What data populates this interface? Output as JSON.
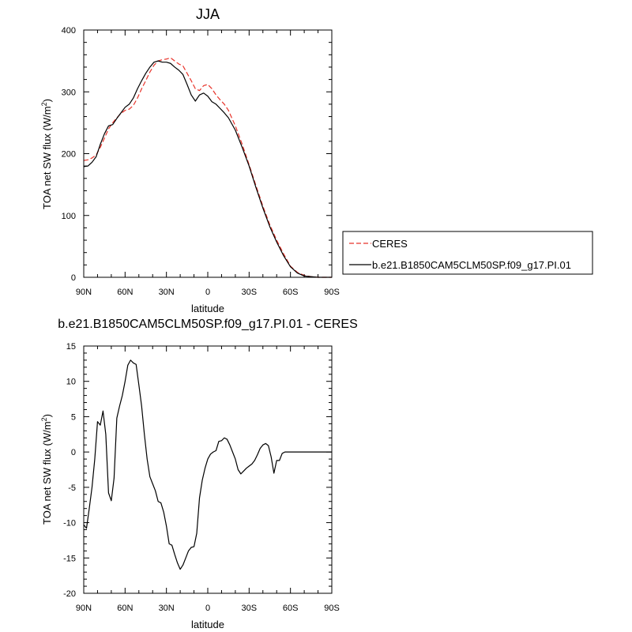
{
  "chart_data": [
    {
      "type": "line",
      "title": "JJA",
      "xlabel": "latitude",
      "ylabel_main": "TOA net SW flux (W/m",
      "ylabel_sup": "2",
      "ylabel_close": ")",
      "xlim": [
        90,
        -90
      ],
      "ylim": [
        0,
        400
      ],
      "xticks": [
        {
          "v": 90,
          "label": "90N"
        },
        {
          "v": 60,
          "label": "60N"
        },
        {
          "v": 30,
          "label": "30N"
        },
        {
          "v": 0,
          "label": "0"
        },
        {
          "v": -30,
          "label": "30S"
        },
        {
          "v": -60,
          "label": "60S"
        },
        {
          "v": -90,
          "label": "90S"
        }
      ],
      "yticks": [
        {
          "v": 0,
          "label": "0"
        },
        {
          "v": 100,
          "label": "100"
        },
        {
          "v": 200,
          "label": "200"
        },
        {
          "v": 300,
          "label": "300"
        },
        {
          "v": 400,
          "label": "400"
        }
      ],
      "legend": {
        "placement": "right"
      },
      "series": [
        {
          "name": "CERES",
          "color": "#e8332a",
          "dashed": true,
          "x": [
            90,
            87,
            84,
            81,
            78,
            75,
            72,
            69,
            66,
            63,
            60,
            57,
            54,
            51,
            48,
            45,
            42,
            39,
            36,
            33,
            30,
            27,
            24,
            21,
            18,
            15,
            12,
            9,
            6,
            3,
            0,
            -3,
            -6,
            -9,
            -12,
            -15,
            -20,
            -25,
            -30,
            -35,
            -40,
            -45,
            -50,
            -55,
            -60,
            -65,
            -70,
            -75,
            -80,
            -85,
            -90
          ],
          "y": [
            189,
            190,
            193,
            198,
            210,
            225,
            240,
            250,
            258,
            265,
            270,
            272,
            278,
            290,
            305,
            318,
            332,
            343,
            350,
            352,
            353,
            355,
            350,
            345,
            342,
            330,
            318,
            305,
            302,
            310,
            312,
            305,
            295,
            287,
            280,
            270,
            245,
            215,
            182,
            148,
            115,
            85,
            60,
            38,
            18,
            8,
            3,
            1,
            0,
            0,
            0
          ]
        },
        {
          "name": "b.e21.B1850CAM5CLM50SP.f09_g17.PI.01",
          "color": "#000000",
          "dashed": false,
          "x": [
            90,
            87,
            84,
            81,
            78,
            75,
            72,
            69,
            66,
            63,
            60,
            57,
            54,
            51,
            48,
            45,
            42,
            39,
            36,
            33,
            30,
            27,
            24,
            21,
            18,
            15,
            12,
            9,
            6,
            3,
            0,
            -3,
            -6,
            -9,
            -12,
            -15,
            -20,
            -25,
            -30,
            -35,
            -40,
            -45,
            -50,
            -55,
            -60,
            -65,
            -70,
            -75,
            -80,
            -85,
            -90
          ],
          "y": [
            179,
            180,
            186,
            195,
            215,
            232,
            245,
            247,
            257,
            266,
            275,
            280,
            290,
            305,
            318,
            330,
            340,
            348,
            350,
            348,
            348,
            346,
            340,
            335,
            328,
            312,
            295,
            285,
            295,
            298,
            293,
            284,
            280,
            273,
            266,
            258,
            238,
            210,
            180,
            145,
            112,
            82,
            57,
            35,
            17,
            7,
            2,
            1,
            0,
            0,
            0
          ]
        }
      ]
    },
    {
      "type": "line",
      "title": "b.e21.B1850CAM5CLM50SP.f09_g17.PI.01 - CERES",
      "xlabel": "latitude",
      "ylabel_main": "TOA net SW flux (W/m",
      "ylabel_sup": "2",
      "ylabel_close": ")",
      "xlim": [
        90,
        -90
      ],
      "ylim": [
        -20,
        15
      ],
      "xticks": [
        {
          "v": 90,
          "label": "90N"
        },
        {
          "v": 60,
          "label": "60N"
        },
        {
          "v": 30,
          "label": "30N"
        },
        {
          "v": 0,
          "label": "0"
        },
        {
          "v": -30,
          "label": "30S"
        },
        {
          "v": -60,
          "label": "60S"
        },
        {
          "v": -90,
          "label": "90S"
        }
      ],
      "yticks": [
        {
          "v": -20,
          "label": "-20"
        },
        {
          "v": -15,
          "label": "-15"
        },
        {
          "v": -10,
          "label": "-10"
        },
        {
          "v": -5,
          "label": "-5"
        },
        {
          "v": 0,
          "label": "0"
        },
        {
          "v": 5,
          "label": "5"
        },
        {
          "v": 10,
          "label": "10"
        },
        {
          "v": 15,
          "label": "15"
        }
      ],
      "series": [
        {
          "color": "#000000",
          "x": [
            90,
            88,
            86,
            84,
            82,
            80,
            78,
            76,
            74,
            72,
            70,
            68,
            66,
            64,
            62,
            60,
            58,
            56,
            54,
            52,
            50,
            48,
            46,
            44,
            42,
            40,
            38,
            36,
            34,
            32,
            30,
            28,
            26,
            24,
            22,
            20,
            18,
            16,
            14,
            12,
            10,
            8,
            6,
            4,
            2,
            0,
            -2,
            -4,
            -6,
            -8,
            -10,
            -12,
            -14,
            -16,
            -18,
            -20,
            -22,
            -24,
            -26,
            -28,
            -30,
            -32,
            -34,
            -36,
            -38,
            -40,
            -42,
            -44,
            -46,
            -48,
            -50,
            -52,
            -54,
            -56,
            -58,
            -60,
            -62,
            -64,
            -66,
            -68,
            -70,
            -72,
            -74,
            -76,
            -78,
            -80,
            -82,
            -84,
            -86,
            -88,
            -90
          ],
          "y": [
            -10.3,
            -10.8,
            -8,
            -5,
            -1,
            4.3,
            3.8,
            5.8,
            2.5,
            -5.8,
            -6.9,
            -3.7,
            4.8,
            6.5,
            8,
            10,
            12.3,
            13,
            12.6,
            12.4,
            9.5,
            6.5,
            2.5,
            -1,
            -3.5,
            -4.5,
            -5.5,
            -7,
            -7.2,
            -8.5,
            -10.5,
            -13,
            -13.2,
            -14.5,
            -15.7,
            -16.6,
            -16,
            -15,
            -14,
            -13.5,
            -13.4,
            -11.5,
            -6.5,
            -4,
            -2.3,
            -1,
            -0.3,
            0,
            0.2,
            1.5,
            1.6,
            2,
            1.8,
            1,
            0,
            -1,
            -2.5,
            -3.1,
            -2.7,
            -2.3,
            -2.0,
            -1.7,
            -1.2,
            -0.4,
            0.5,
            1,
            1.2,
            0.9,
            -0.7,
            -3,
            -1.2,
            -1.2,
            -0.2,
            0,
            0,
            0,
            0,
            0,
            0,
            0,
            0,
            0,
            0,
            0,
            0,
            0,
            0,
            0,
            0,
            0,
            0
          ]
        }
      ]
    }
  ]
}
